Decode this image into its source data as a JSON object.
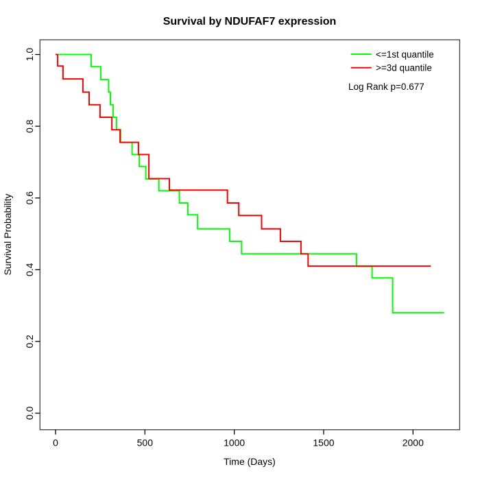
{
  "title": "Survival by NDUFAF7 expression",
  "x_axis": {
    "label": "Time (Days)",
    "ticks": [
      0,
      500,
      1000,
      1500,
      2000
    ]
  },
  "y_axis": {
    "label": "Survival Probability",
    "ticks": [
      "0.0",
      "0.2",
      "0.4",
      "0.6",
      "0.8",
      "1.0"
    ]
  },
  "legend": {
    "items": [
      {
        "label": "<=1st quantile",
        "color": "#00ff00"
      },
      {
        "label": ">=3d quantile",
        "color": "#ff0000"
      }
    ],
    "note": "Log Rank p=0.677"
  },
  "chart_data": {
    "type": "line",
    "subtype": "kaplan_meier_step",
    "title": "Survival by NDUFAF7 expression",
    "xlabel": "Time (Days)",
    "ylabel": "Survival Probability",
    "xlim": [
      0,
      2200
    ],
    "ylim": [
      0,
      1
    ],
    "grid": false,
    "legend_position": "top-right",
    "annotation": "Log Rank p=0.677",
    "series": [
      {
        "name": "<=1st quantile",
        "color": "#00ff00",
        "end_time": 2174,
        "points": [
          [
            0,
            1.0
          ],
          [
            199,
            0.966
          ],
          [
            253,
            0.93
          ],
          [
            297,
            0.895
          ],
          [
            307,
            0.86
          ],
          [
            322,
            0.825
          ],
          [
            341,
            0.79
          ],
          [
            364,
            0.755
          ],
          [
            428,
            0.721
          ],
          [
            469,
            0.688
          ],
          [
            505,
            0.653
          ],
          [
            578,
            0.62
          ],
          [
            693,
            0.586
          ],
          [
            740,
            0.553
          ],
          [
            795,
            0.514
          ],
          [
            974,
            0.479
          ],
          [
            1041,
            0.444
          ],
          [
            1684,
            0.409
          ],
          [
            1771,
            0.377
          ],
          [
            1886,
            0.28
          ]
        ]
      },
      {
        "name": ">=3d quantile",
        "color": "#ff0000",
        "end_time": 2100,
        "points": [
          [
            0,
            1.0
          ],
          [
            12,
            0.968
          ],
          [
            42,
            0.932
          ],
          [
            153,
            0.895
          ],
          [
            188,
            0.86
          ],
          [
            249,
            0.825
          ],
          [
            315,
            0.79
          ],
          [
            361,
            0.755
          ],
          [
            464,
            0.721
          ],
          [
            522,
            0.654
          ],
          [
            637,
            0.622
          ],
          [
            962,
            0.586
          ],
          [
            1025,
            0.551
          ],
          [
            1153,
            0.514
          ],
          [
            1258,
            0.479
          ],
          [
            1373,
            0.444
          ],
          [
            1413,
            0.41
          ]
        ]
      }
    ]
  }
}
